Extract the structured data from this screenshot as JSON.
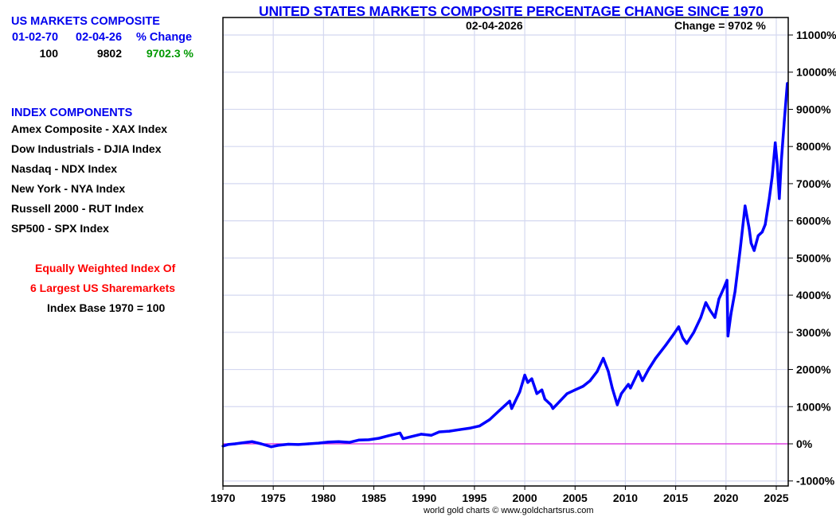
{
  "sidebar": {
    "composite_title": "US MARKETS COMPOSITE",
    "headers": [
      "01-02-70",
      "02-04-26",
      "% Change"
    ],
    "values": [
      "100",
      "9802",
      "9702.3 %"
    ],
    "components_title": "INDEX COMPONENTS",
    "components": [
      "Amex Composite - XAX Index",
      "Dow Industrials - DJIA Index",
      "Nasdaq - NDX Index",
      "New York - NYA Index",
      "Russell 2000 - RUT Index",
      "SP500 - SPX Index"
    ],
    "note_line1": "Equally Weighted Index Of",
    "note_line2": "6 Largest US Sharemarkets",
    "note_line3": "Index Base 1970 = 100"
  },
  "credit": "world gold charts © www.goldchartsrus.com",
  "colors": {
    "title": "#0000ee",
    "series": "#0000ff",
    "zero_line": "#dd22dd",
    "grid": "#d4d8f0",
    "positive_change": "#009900",
    "note": "#ff0000"
  },
  "chart_data": {
    "type": "line",
    "title": "UNITED STATES MARKETS COMPOSITE PERCENTAGE CHANGE SINCE 1970",
    "date_label": "02-04-2026",
    "change_label": "Change = 9702 %",
    "xlabel": "",
    "ylabel": "",
    "xlim": [
      1970,
      2026.2
    ],
    "ylim": [
      -1100,
      11300
    ],
    "grid": true,
    "x_ticks": [
      1970,
      1975,
      1980,
      1985,
      1990,
      1995,
      2000,
      2005,
      2010,
      2015,
      2020,
      2025
    ],
    "x_tick_labels": [
      "1970",
      "1975",
      "1980",
      "1985",
      "1990",
      "1995",
      "2000",
      "2005",
      "2010",
      "2015",
      "2020",
      "2025"
    ],
    "y_ticks": [
      -1000,
      0,
      1000,
      2000,
      3000,
      4000,
      5000,
      6000,
      7000,
      8000,
      9000,
      10000,
      11000
    ],
    "y_tick_labels": [
      "-1000%",
      "0%",
      "1000%",
      "2000%",
      "3000%",
      "4000%",
      "5000%",
      "6000%",
      "7000%",
      "8000%",
      "9000%",
      "10000%",
      "11000%"
    ],
    "reference_line": 0,
    "series": [
      {
        "name": "US Markets Composite % Change",
        "x": [
          1970.0,
          1970.5,
          1971.2,
          1972.0,
          1972.9,
          1973.8,
          1974.8,
          1975.5,
          1976.5,
          1977.5,
          1978.5,
          1979.5,
          1980.5,
          1981.5,
          1982.6,
          1983.5,
          1984.5,
          1985.5,
          1986.5,
          1987.6,
          1987.9,
          1988.8,
          1989.7,
          1990.7,
          1991.5,
          1992.5,
          1993.5,
          1994.5,
          1995.5,
          1996.5,
          1997.5,
          1998.5,
          1998.7,
          1999.5,
          2000.0,
          2000.3,
          2000.7,
          2001.2,
          2001.7,
          2002.0,
          2002.6,
          2002.8,
          2003.5,
          2004.2,
          2005.0,
          2005.8,
          2006.5,
          2007.2,
          2007.8,
          2008.3,
          2008.7,
          2009.2,
          2009.6,
          2010.3,
          2010.5,
          2011.3,
          2011.7,
          2012.3,
          2013.0,
          2014.0,
          2014.8,
          2015.3,
          2015.7,
          2016.1,
          2016.8,
          2017.5,
          2018.0,
          2018.4,
          2018.9,
          2019.3,
          2019.8,
          2020.1,
          2020.2,
          2020.5,
          2020.9,
          2021.4,
          2021.9,
          2022.3,
          2022.5,
          2022.8,
          2023.2,
          2023.6,
          2023.9,
          2024.3,
          2024.6,
          2024.9,
          2025.1,
          2025.3,
          2025.5,
          2025.8,
          2026.1
        ],
        "values": [
          -60,
          -20,
          0,
          30,
          60,
          0,
          -80,
          -40,
          -10,
          -20,
          0,
          20,
          50,
          60,
          40,
          100,
          110,
          150,
          220,
          290,
          140,
          200,
          260,
          230,
          320,
          340,
          380,
          420,
          480,
          650,
          900,
          1150,
          950,
          1400,
          1850,
          1650,
          1750,
          1350,
          1450,
          1200,
          1050,
          950,
          1150,
          1350,
          1450,
          1550,
          1700,
          1950,
          2300,
          1950,
          1500,
          1050,
          1350,
          1600,
          1500,
          1950,
          1700,
          2000,
          2300,
          2650,
          2950,
          3150,
          2850,
          2700,
          3000,
          3400,
          3800,
          3600,
          3400,
          3900,
          4200,
          4400,
          2900,
          3500,
          4100,
          5200,
          6400,
          5800,
          5400,
          5200,
          5600,
          5700,
          5900,
          6600,
          7200,
          8100,
          7500,
          6600,
          7600,
          8700,
          9700
        ]
      }
    ]
  }
}
